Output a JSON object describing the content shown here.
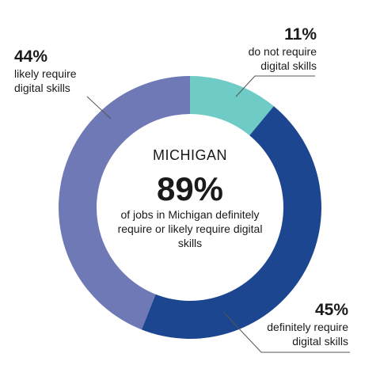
{
  "chart_data": {
    "type": "donut",
    "title": "",
    "center": {
      "title": "MICHIGAN",
      "value": "89%",
      "description": "of jobs in Michigan definitely require or likely require digital skills"
    },
    "series": [
      {
        "key": "not_require",
        "value": 11,
        "label": "11%",
        "description": "do not require\ndigital skills",
        "color": "#6fcbc5"
      },
      {
        "key": "definitely",
        "value": 45,
        "label": "45%",
        "description": "definitely require\ndigital skills",
        "color": "#1d4690"
      },
      {
        "key": "likely",
        "value": 44,
        "label": "44%",
        "description": "likely require\ndigital skills",
        "color": "#6e79b6"
      }
    ]
  },
  "colors": {
    "leader_line": "#555555"
  }
}
